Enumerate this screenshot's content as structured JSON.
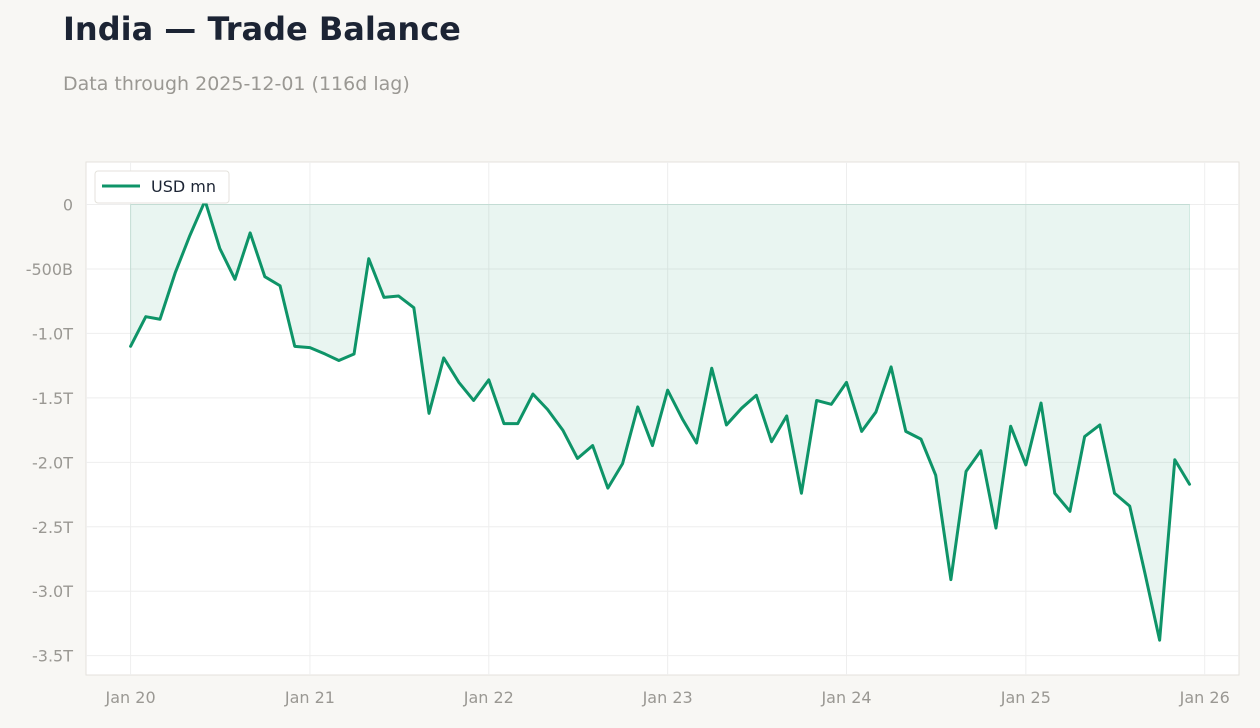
{
  "title": "India — Trade Balance",
  "subtitle": "Data through 2025-12-01 (116d lag)",
  "colors": {
    "line": "#0e9468",
    "fill": "#0e9468",
    "background": "#f8f7f4",
    "plot_background": "#ffffff",
    "grid": "#eeeeee",
    "tick_text": "#9a9893"
  },
  "chart_data": {
    "type": "area",
    "series": [
      {
        "name": "USD mn",
        "x": [
          "2020-01",
          "2020-02",
          "2020-03",
          "2020-04",
          "2020-05",
          "2020-06",
          "2020-07",
          "2020-08",
          "2020-09",
          "2020-10",
          "2020-11",
          "2020-12",
          "2021-01",
          "2021-02",
          "2021-03",
          "2021-04",
          "2021-05",
          "2021-06",
          "2021-07",
          "2021-08",
          "2021-09",
          "2021-10",
          "2021-11",
          "2021-12",
          "2022-01",
          "2022-02",
          "2022-03",
          "2022-04",
          "2022-05",
          "2022-06",
          "2022-07",
          "2022-08",
          "2022-09",
          "2022-10",
          "2022-11",
          "2022-12",
          "2023-01",
          "2023-02",
          "2023-03",
          "2023-04",
          "2023-05",
          "2023-06",
          "2023-07",
          "2023-08",
          "2023-09",
          "2023-10",
          "2023-11",
          "2023-12",
          "2024-01",
          "2024-02",
          "2024-03",
          "2024-04",
          "2024-05",
          "2024-06",
          "2024-07",
          "2024-08",
          "2024-09",
          "2024-10",
          "2024-11",
          "2024-12",
          "2025-01",
          "2025-02",
          "2025-03",
          "2025-04",
          "2025-05",
          "2025-06",
          "2025-07",
          "2025-08",
          "2025-09",
          "2025-10",
          "2025-11",
          "2025-12"
        ],
        "values": [
          -1100000000000.0,
          -870000000000.0,
          -890000000000.0,
          -530000000000.0,
          -240000000000.0,
          30000000000.0,
          -340000000000.0,
          -580000000000.0,
          -220000000000.0,
          -560000000000.0,
          -630000000000.0,
          -1100000000000.0,
          -1110000000000.0,
          -1160000000000.0,
          -1210000000000.0,
          -1160000000000.0,
          -420000000000.0,
          -720000000000.0,
          -710000000000.0,
          -800000000000.0,
          -1620000000000.0,
          -1190000000000.0,
          -1380000000000.0,
          -1520000000000.0,
          -1360000000000.0,
          -1700000000000.0,
          -1700000000000.0,
          -1470000000000.0,
          -1590000000000.0,
          -1750000000000.0,
          -1970000000000.0,
          -1870000000000.0,
          -2200000000000.0,
          -2010000000000.0,
          -1570000000000.0,
          -1870000000000.0,
          -1440000000000.0,
          -1670000000000.0,
          -1850000000000.0,
          -1270000000000.0,
          -1710000000000.0,
          -1580000000000.0,
          -1480000000000.0,
          -1840000000000.0,
          -1640000000000.0,
          -2240000000000.0,
          -1520000000000.0,
          -1550000000000.0,
          -1380000000000.0,
          -1760000000000.0,
          -1610000000000.0,
          -1260000000000.0,
          -1760000000000.0,
          -1820000000000.0,
          -2100000000000.0,
          -2910000000000.0,
          -2070000000000.0,
          -1910000000000.0,
          -2510000000000.0,
          -1720000000000.0,
          -2020000000000.0,
          -1540000000000.0,
          -2240000000000.0,
          -2380000000000.0,
          -1800000000000.0,
          -1710000000000.0,
          -2240000000000.0,
          -2340000000000.0,
          -2860000000000.0,
          -3380000000000.0,
          -1980000000000.0,
          -2170000000000.0
        ]
      }
    ],
    "x_ticks": [
      "Jan 20",
      "Jan 21",
      "Jan 22",
      "Jan 23",
      "Jan 24",
      "Jan 25",
      "Jan 26"
    ],
    "y_ticks": [
      0,
      -500000000000.0,
      -1000000000000.0,
      -1500000000000.0,
      -2000000000000.0,
      -2500000000000.0,
      -3000000000000.0,
      -3500000000000.0
    ],
    "y_tick_labels": [
      "0",
      "-500B",
      "-1.0T",
      "-1.5T",
      "-2.0T",
      "-2.5T",
      "-3.0T",
      "-3.5T"
    ],
    "xlim": [
      "2019-10-02",
      "2026-03-12"
    ],
    "ylim": [
      -3650000000000.0,
      330000000000.0
    ],
    "grid": true,
    "legend_position": "top-left"
  }
}
